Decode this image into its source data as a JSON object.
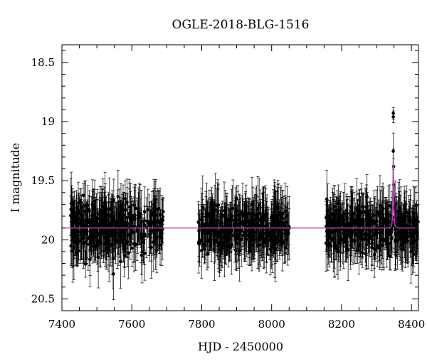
{
  "chart_data": {
    "type": "scatter",
    "title": "OGLE-2018-BLG-1516",
    "xlabel": "HJD - 2450000",
    "ylabel": "I magnitude",
    "xlim": [
      7400,
      8420
    ],
    "ylim": [
      20.6,
      18.35
    ],
    "y_inverted": true,
    "x_ticks": [
      7400,
      7600,
      7800,
      8000,
      8200,
      8400
    ],
    "y_ticks": [
      18.5,
      19,
      19.5,
      20,
      20.5
    ],
    "x_tick_labels": [
      "7400",
      "7600",
      "7800",
      "8000",
      "8200",
      "8400"
    ],
    "y_tick_labels": [
      "18.5",
      "19",
      "19.5",
      "20",
      "20.5"
    ],
    "grid": false,
    "observing_seasons": [
      {
        "start": 7425,
        "end": 7690,
        "baseline_mag": 19.9,
        "scatter": 0.28
      },
      {
        "start": 7790,
        "end": 8050,
        "baseline_mag": 19.9,
        "scatter": 0.22
      },
      {
        "start": 8155,
        "end": 8420,
        "baseline_mag": 19.9,
        "scatter": 0.22
      }
    ],
    "outlier_points": [
      {
        "x": 8348,
        "y": 18.93
      },
      {
        "x": 8348,
        "y": 18.96
      }
    ],
    "model": {
      "name": "",
      "color": "#bb44bb",
      "baseline_mag": 19.9,
      "peak_time": 8348,
      "peak_mag": 19.27,
      "tE": 2.2
    },
    "marker_color": "#000000"
  }
}
